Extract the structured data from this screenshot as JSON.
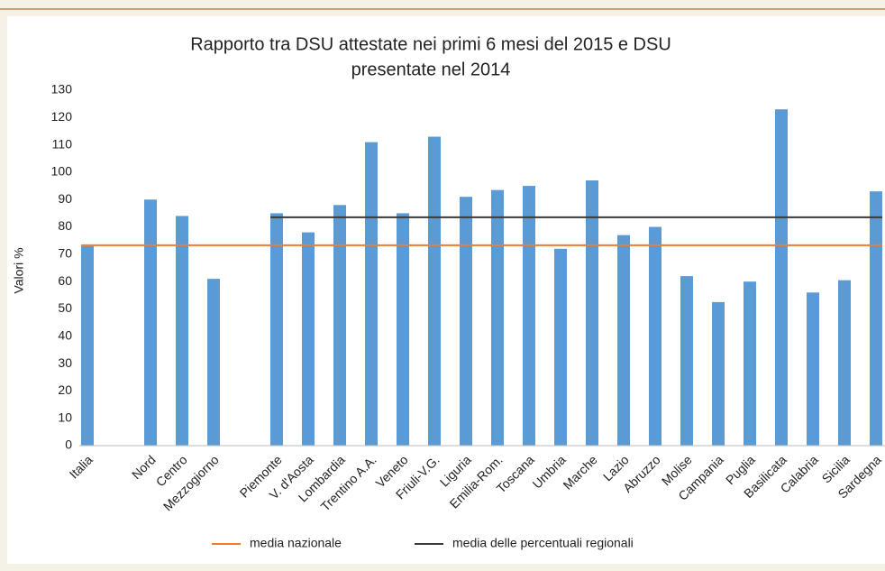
{
  "chart_data": {
    "type": "bar",
    "title": [
      "Rapporto tra DSU attestate nei primi 6 mesi del 2015 e DSU",
      "presentate nel 2014"
    ],
    "y_label": "Valori %",
    "categories": [
      "Italia",
      null,
      "Nord",
      "Centro",
      "Mezzogiorno",
      null,
      "Piemonte",
      "V. d'Aosta",
      "Lombardia",
      "Trentino A.A.",
      "Veneto",
      "Friuli-V.G.",
      "Liguria",
      "Emilia-Rom.",
      "Toscana",
      "Umbria",
      "Marche",
      "Lazio",
      "Abruzzo",
      "Molise",
      "Campania",
      "Puglia",
      "Basilicata",
      "Calabria",
      "Sicilia",
      "Sardegna"
    ],
    "values": [
      73,
      null,
      90,
      84,
      61,
      null,
      85,
      78,
      88,
      111,
      85,
      113,
      91,
      93.5,
      95,
      72,
      97,
      77,
      80,
      62,
      52.5,
      60,
      123,
      56,
      60.5,
      93
    ],
    "color": "#5b9bd5",
    "lines": [
      {
        "name": "media nazionale",
        "color": "#ed7d31",
        "value": 73.3,
        "span": [
          "Italia",
          "Sardegna"
        ]
      },
      {
        "name": "media delle percentuali regionali",
        "color": "#3a3a3a",
        "value": 83.5,
        "span": [
          "Piemonte",
          "Sardegna"
        ]
      }
    ],
    "ylim": [
      0,
      130
    ],
    "yticks": [
      0,
      10,
      20,
      30,
      40,
      50,
      60,
      70,
      80,
      90,
      100,
      110,
      120,
      130
    ],
    "grid": false
  }
}
